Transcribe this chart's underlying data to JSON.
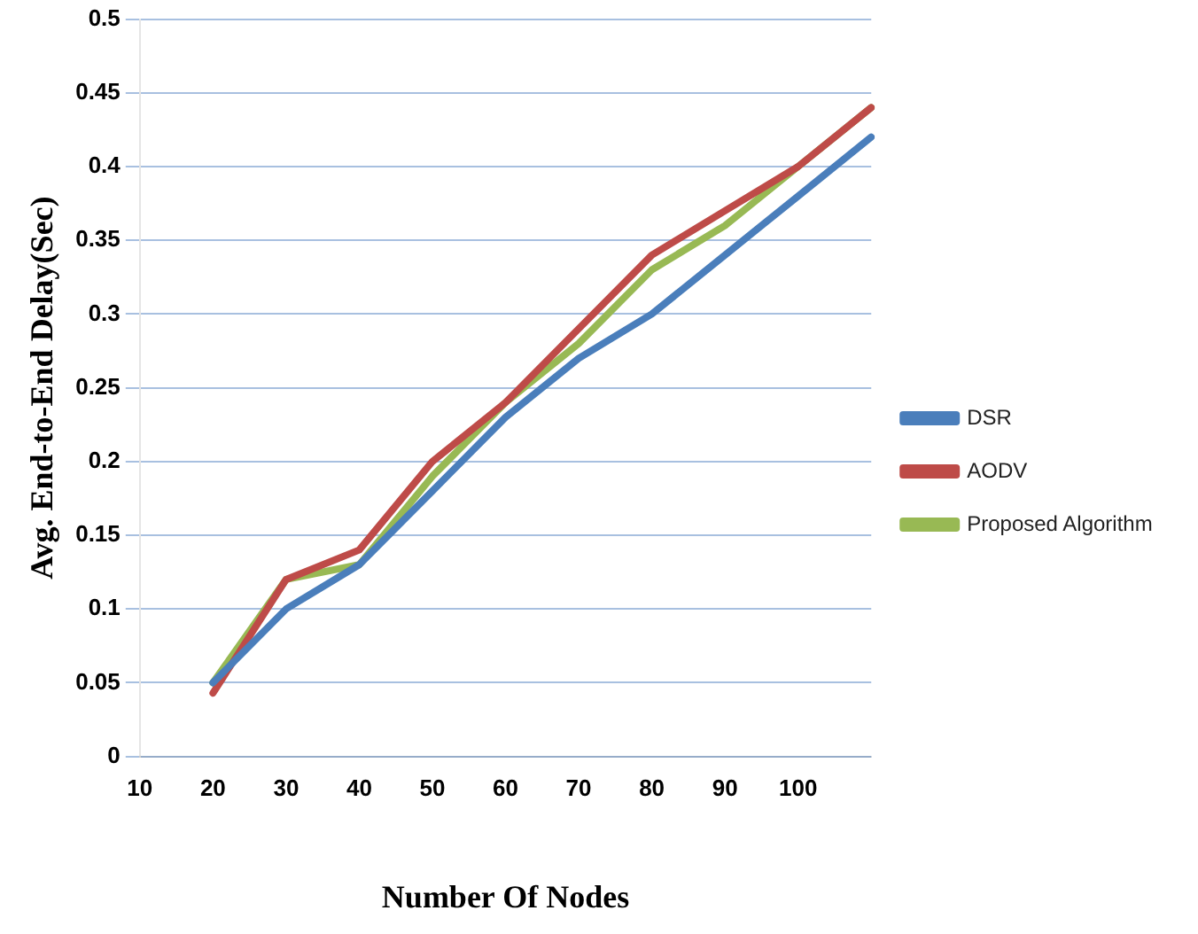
{
  "chart_data": {
    "type": "line",
    "xlabel": "Number Of Nodes",
    "ylabel": "Avg. End-to-End Delay(Sec)",
    "categories": [
      "10",
      "20",
      "30",
      "40",
      "50",
      "60",
      "70",
      "80",
      "90",
      "100",
      null
    ],
    "series": [
      {
        "name": "DSR",
        "color": "#4a7ebb",
        "values": [
          null,
          0.05,
          0.1,
          0.13,
          0.18,
          0.23,
          0.27,
          0.3,
          0.34,
          0.38,
          0.42
        ]
      },
      {
        "name": "AODV",
        "color": "#be4b48",
        "values": [
          null,
          0.043,
          0.12,
          0.14,
          0.2,
          0.24,
          0.29,
          0.34,
          0.37,
          0.4,
          0.44
        ]
      },
      {
        "name": "Proposed Algorithm",
        "color": "#98b954",
        "values": [
          null,
          0.05,
          0.12,
          0.13,
          0.19,
          0.24,
          0.28,
          0.33,
          0.36,
          0.4,
          0.44
        ]
      }
    ],
    "ylim": [
      0,
      0.5
    ],
    "yticks": [
      0,
      0.05,
      0.1,
      0.15,
      0.2,
      0.25,
      0.3,
      0.35,
      0.4,
      0.45,
      0.5
    ],
    "grid": "y",
    "legend": "right",
    "marker": "none",
    "line_style": "solid"
  }
}
